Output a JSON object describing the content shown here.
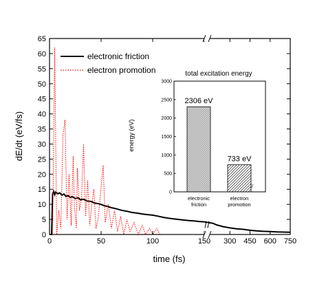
{
  "chart_data": [
    {
      "type": "line",
      "xlabel": "time (fs)",
      "ylabel": "dE/dt (eV/fs)",
      "ylim": [
        0,
        65
      ],
      "y_ticks": [
        "0",
        "5",
        "10",
        "15",
        "20",
        "25",
        "30",
        "35",
        "40",
        "45",
        "50",
        "55",
        "60",
        "65"
      ],
      "x_segments": [
        {
          "xlim": [
            0,
            150
          ],
          "ticks": [
            "0",
            "50",
            "100",
            "150"
          ]
        },
        {
          "xlim": [
            150,
            750
          ],
          "ticks": [
            "150",
            "300",
            "450",
            "600",
            "750"
          ]
        }
      ],
      "axis_break": true,
      "legend": "top-left",
      "series": [
        {
          "name": "electronic friction",
          "color": "#000000",
          "style": "solid",
          "points": [
            [
              0,
              0
            ],
            [
              2,
              0
            ],
            [
              3,
              13.5
            ],
            [
              4,
              14.3
            ],
            [
              5,
              13.2
            ],
            [
              6,
              14.1
            ],
            [
              8,
              13.5
            ],
            [
              10,
              13.8
            ],
            [
              12,
              13.0
            ],
            [
              14,
              13.4
            ],
            [
              16,
              12.6
            ],
            [
              18,
              12.9
            ],
            [
              20,
              12.3
            ],
            [
              22,
              12.6
            ],
            [
              25,
              11.9
            ],
            [
              28,
              12.2
            ],
            [
              30,
              11.5
            ],
            [
              33,
              11.7
            ],
            [
              36,
              11.1
            ],
            [
              40,
              11.0
            ],
            [
              44,
              10.4
            ],
            [
              48,
              10.2
            ],
            [
              52,
              9.7
            ],
            [
              56,
              9.3
            ],
            [
              60,
              8.9
            ],
            [
              65,
              8.5
            ],
            [
              70,
              8.0
            ],
            [
              75,
              7.7
            ],
            [
              80,
              7.3
            ],
            [
              85,
              7.1
            ],
            [
              90,
              6.8
            ],
            [
              95,
              6.6
            ],
            [
              100,
              6.4
            ],
            [
              105,
              6.1
            ],
            [
              110,
              5.7
            ],
            [
              115,
              5.4
            ],
            [
              120,
              5.2
            ],
            [
              125,
              5.0
            ],
            [
              130,
              4.8
            ],
            [
              135,
              4.6
            ],
            [
              140,
              4.5
            ],
            [
              145,
              4.3
            ],
            [
              150,
              4.2
            ],
            [
              175,
              3.7
            ],
            [
              200,
              3.2
            ],
            [
              250,
              2.6
            ],
            [
              300,
              2.2
            ],
            [
              350,
              1.9
            ],
            [
              400,
              1.7
            ],
            [
              450,
              1.4
            ],
            [
              500,
              1.2
            ],
            [
              550,
              1.05
            ],
            [
              600,
              0.95
            ],
            [
              650,
              0.85
            ],
            [
              700,
              0.8
            ],
            [
              750,
              0.75
            ]
          ]
        },
        {
          "name": "electron promotion",
          "color": "#ff0000",
          "style": "dotted",
          "points": [
            [
              0,
              0
            ],
            [
              3,
              0
            ],
            [
              5,
              62
            ],
            [
              7,
              0
            ],
            [
              9,
              8
            ],
            [
              11,
              2
            ],
            [
              13,
              33
            ],
            [
              15,
              38
            ],
            [
              17,
              5
            ],
            [
              19,
              20
            ],
            [
              21,
              3
            ],
            [
              23,
              26
            ],
            [
              24,
              10
            ],
            [
              26,
              2
            ],
            [
              27,
              22
            ],
            [
              29,
              8
            ],
            [
              31,
              12
            ],
            [
              33,
              30
            ],
            [
              35,
              6
            ],
            [
              37,
              18
            ],
            [
              39,
              3
            ],
            [
              41,
              10
            ],
            [
              43,
              15
            ],
            [
              45,
              2
            ],
            [
              47,
              5
            ],
            [
              49,
              12
            ],
            [
              52,
              23
            ],
            [
              54,
              4
            ],
            [
              57,
              10
            ],
            [
              60,
              2
            ],
            [
              63,
              8
            ],
            [
              66,
              1
            ],
            [
              69,
              6
            ],
            [
              72,
              0
            ],
            [
              75,
              5
            ],
            [
              78,
              1
            ],
            [
              82,
              4
            ],
            [
              86,
              0
            ],
            [
              90,
              3
            ],
            [
              93,
              0
            ],
            [
              97,
              2
            ],
            [
              100,
              0
            ],
            [
              104,
              2
            ],
            [
              107,
              0
            ],
            [
              150,
              0
            ]
          ]
        }
      ]
    },
    {
      "type": "bar",
      "title": "total excitation energy",
      "ylabel": "energy (eV)",
      "ylim": [
        0,
        3000
      ],
      "y_ticks": [
        "0",
        "500",
        "1000",
        "1500",
        "2000",
        "2500",
        "3000"
      ],
      "categories": [
        [
          "electronic",
          "friction"
        ],
        [
          "electron",
          "promotion"
        ]
      ],
      "values": [
        2306,
        733
      ],
      "value_labels": [
        "2306 eV",
        "733 eV"
      ],
      "break_mark": "//"
    }
  ]
}
